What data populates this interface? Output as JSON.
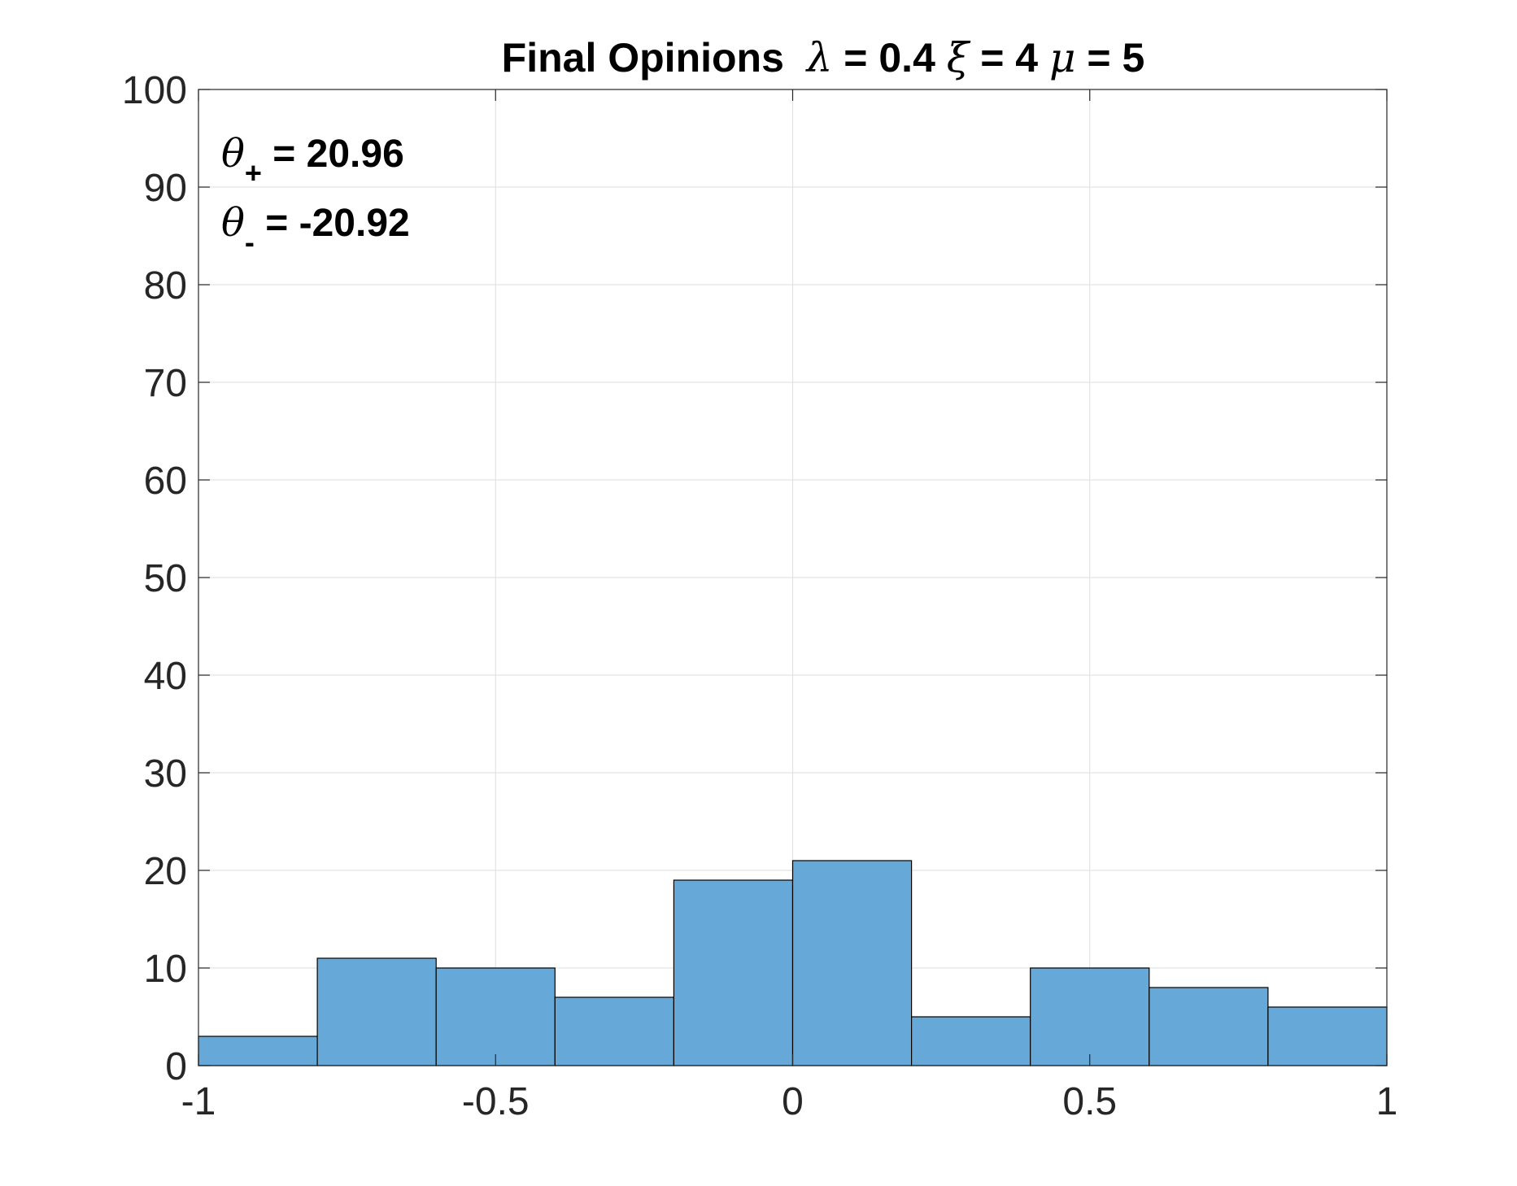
{
  "chart_data": {
    "type": "bar",
    "title": {
      "prefix": "Final Opinions",
      "parts": [
        {
          "symbol": "λ",
          "text": " = 0.4 "
        },
        {
          "symbol": "ξ",
          "text": " = 4 "
        },
        {
          "symbol": "μ",
          "text": " = 5"
        }
      ]
    },
    "xlabel": "",
    "ylabel": "",
    "xlim": [
      -1,
      1
    ],
    "ylim": [
      0,
      100
    ],
    "xticks": [
      -1,
      -0.5,
      0,
      0.5,
      1
    ],
    "yticks": [
      0,
      10,
      20,
      30,
      40,
      50,
      60,
      70,
      80,
      90,
      100
    ],
    "grid": true,
    "bin_edges": [
      -1,
      -0.8,
      -0.6,
      -0.4,
      -0.2,
      0,
      0.2,
      0.4,
      0.6,
      0.8,
      1
    ],
    "values": [
      3,
      11,
      10,
      7,
      19,
      21,
      5,
      10,
      8,
      6
    ],
    "bar_color": "#66a9d8",
    "edge_color": "#000000",
    "annotations": [
      {
        "symbol": "θ",
        "sub": "+",
        "text": " = 20.96"
      },
      {
        "symbol": "θ",
        "sub": "-",
        "text": " = -20.92"
      }
    ]
  }
}
